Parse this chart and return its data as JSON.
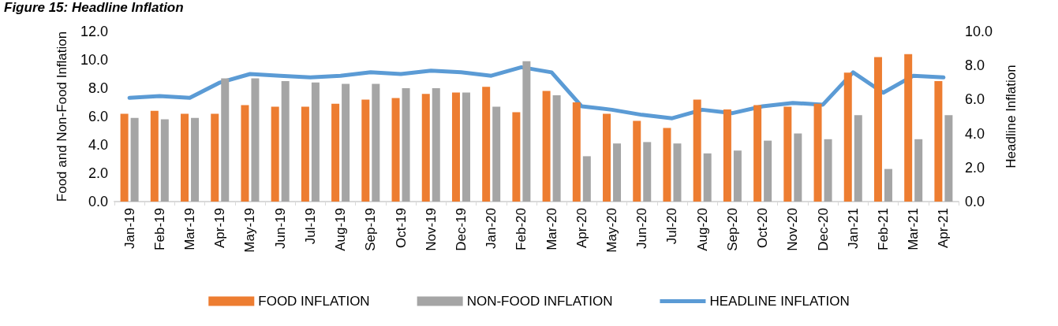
{
  "chart_data": {
    "type": "bar",
    "title": "Figure 15: Headline Inflation",
    "ylabel": "Food and Non-Food Inflation",
    "y2label": "Headline Inflation",
    "categories": [
      "Jan-19",
      "Feb-19",
      "Mar-19",
      "Apr-19",
      "May-19",
      "Jun-19",
      "Jul-19",
      "Aug-19",
      "Sep-19",
      "Oct-19",
      "Nov-19",
      "Dec-19",
      "Jan-20",
      "Feb-20",
      "Mar-20",
      "Apr-20",
      "May-20",
      "Jun-20",
      "Jul-20",
      "Aug-20",
      "Sep-20",
      "Oct-20",
      "Nov-20",
      "Dec-20",
      "Jan-21",
      "Feb-21",
      "Mar-21",
      "Apr-21"
    ],
    "series": [
      {
        "name": "FOOD INFLATION",
        "color": "#ed7d31",
        "values": [
          6.2,
          6.4,
          6.2,
          6.2,
          6.8,
          6.7,
          6.7,
          6.9,
          7.2,
          7.3,
          7.6,
          7.7,
          8.1,
          6.3,
          7.8,
          7.0,
          6.2,
          5.7,
          5.2,
          7.2,
          6.5,
          6.8,
          6.7,
          6.9,
          9.1,
          10.2,
          10.4,
          8.5
        ]
      },
      {
        "name": "NON-FOOD INFLATION",
        "color": "#a5a5a5",
        "values": [
          5.9,
          5.8,
          5.9,
          8.7,
          8.7,
          8.5,
          8.4,
          8.3,
          8.3,
          8.0,
          8.0,
          7.7,
          6.7,
          9.9,
          7.5,
          3.2,
          4.1,
          4.2,
          4.1,
          3.4,
          3.6,
          4.3,
          4.8,
          4.4,
          6.1,
          2.3,
          4.4,
          6.1
        ]
      },
      {
        "name": "HEADLINE INFLATION",
        "type": "line",
        "axis": "y2",
        "color": "#5b9bd5",
        "values": [
          6.1,
          6.2,
          6.1,
          7.0,
          7.5,
          7.4,
          7.3,
          7.4,
          7.6,
          7.5,
          7.7,
          7.6,
          7.4,
          7.9,
          7.6,
          5.6,
          5.4,
          5.1,
          4.9,
          5.4,
          5.2,
          5.6,
          5.8,
          5.7,
          7.6,
          6.4,
          7.4,
          7.3
        ]
      }
    ],
    "ylim": [
      0,
      12
    ],
    "yticks": [
      {
        "value": 0,
        "label": "0.0"
      },
      {
        "value": 2,
        "label": "2.0"
      },
      {
        "value": 4,
        "label": "4.0"
      },
      {
        "value": 6,
        "label": "6.0"
      },
      {
        "value": 8,
        "label": "8.0"
      },
      {
        "value": 10,
        "label": "10.0"
      },
      {
        "value": 12,
        "label": "12.0"
      }
    ],
    "y2lim": [
      0,
      10
    ],
    "y2ticks": [
      {
        "value": 0,
        "label": "0.0"
      },
      {
        "value": 2,
        "label": "2.0"
      },
      {
        "value": 4,
        "label": "4.0"
      },
      {
        "value": 6,
        "label": "6.0"
      },
      {
        "value": 8,
        "label": "8.0"
      },
      {
        "value": 10,
        "label": "10.0"
      }
    ],
    "grid": false,
    "legend": "bottom",
    "marker": "none"
  }
}
